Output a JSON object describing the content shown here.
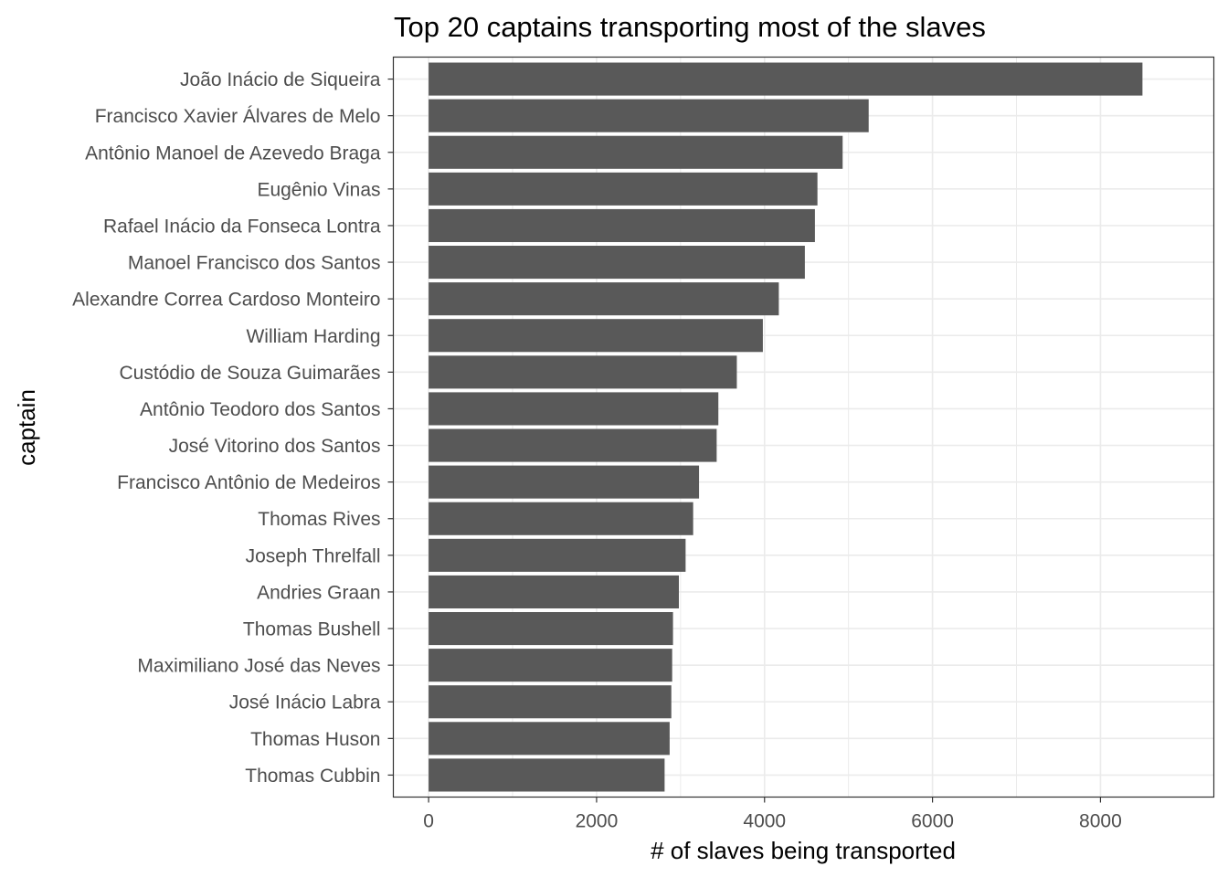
{
  "chart_data": {
    "type": "bar",
    "orientation": "horizontal",
    "title": "Top 20 captains transporting most of the slaves",
    "xlabel": "# of slaves being transported",
    "ylabel": "captain",
    "xlim": [
      -420,
      9350
    ],
    "x_ticks": [
      0,
      2000,
      4000,
      6000,
      8000
    ],
    "x_tick_labels": [
      "0",
      "2000",
      "4000",
      "6000",
      "8000"
    ],
    "categories": [
      "João Inácio de Siqueira",
      "Francisco Xavier Álvares de Melo",
      "Antônio Manoel de Azevedo Braga",
      "Eugênio Vinas",
      "Rafael Inácio da Fonseca Lontra",
      "Manoel Francisco dos Santos",
      "Alexandre Correa Cardoso Monteiro",
      "William Harding",
      "Custódio de Souza Guimarães",
      "Antônio Teodoro dos Santos",
      "José Vitorino dos Santos",
      "Francisco Antônio de Medeiros",
      "Thomas Rives",
      "Joseph Threlfall",
      "Andries Graan",
      "Thomas Bushell",
      "Maximiliano José das Neves",
      "José Inácio Labra",
      "Thomas Huson",
      "Thomas Cubbin"
    ],
    "values": [
      8500,
      5240,
      4930,
      4630,
      4600,
      4480,
      4170,
      3980,
      3670,
      3450,
      3430,
      3220,
      3150,
      3060,
      2980,
      2910,
      2900,
      2890,
      2870,
      2810
    ],
    "grid": true,
    "bar_color": "#595959",
    "grid_color": "#ebebeb",
    "panel_border_color": "#333333",
    "tick_label_color": "#4d4d4d"
  }
}
